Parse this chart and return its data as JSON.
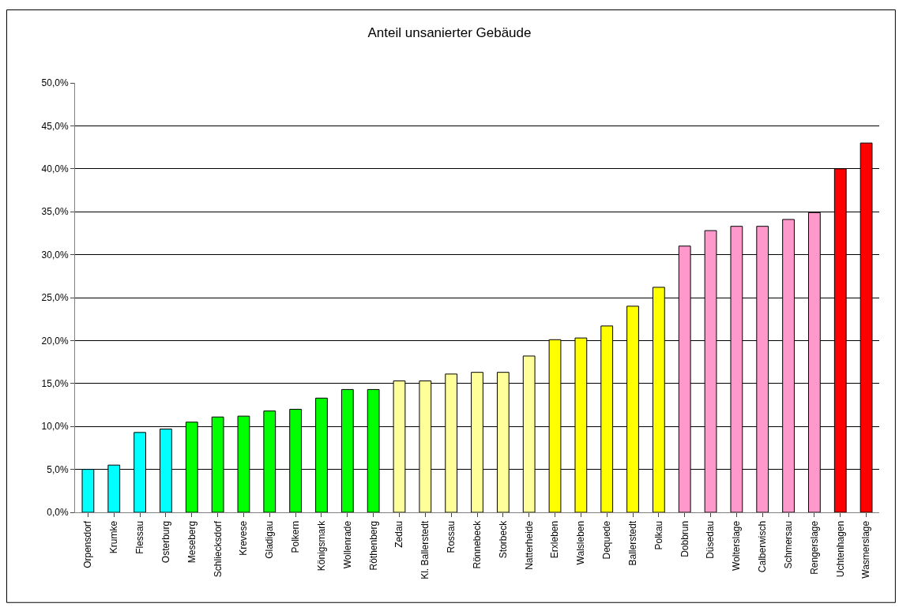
{
  "chart_data": {
    "type": "bar",
    "title": "Anteil unsanierter Gebäude",
    "categories": [
      "Orpensdorf",
      "Krumke",
      "Flessau",
      "Osterburg",
      "Meseberg",
      "Schliecksdorf",
      "Krevese",
      "Gladigau",
      "Polkern",
      "Königsmark",
      "Wollenrade",
      "Röthenberg",
      "Zedau",
      "Kl. Ballerstedt",
      "Rossau",
      "Rönnebeck",
      "Storbeck",
      "Natterheide",
      "Erxleben",
      "Walsleben",
      "Dequede",
      "Ballerstedt",
      "Polkau",
      "Dobbrun",
      "Düsedau",
      "Wolterslage",
      "Calberwisch",
      "Schmersau",
      "Rengerslage",
      "Uchtenhagen",
      "Wasmerslage"
    ],
    "values": [
      5.0,
      5.5,
      9.3,
      9.7,
      10.5,
      11.1,
      11.2,
      11.8,
      12.0,
      13.3,
      14.3,
      14.3,
      15.3,
      15.3,
      16.1,
      16.3,
      16.3,
      18.2,
      20.1,
      20.3,
      21.7,
      24.0,
      26.2,
      31.0,
      32.8,
      33.3,
      33.3,
      34.1,
      34.9,
      40.0,
      43.0
    ],
    "colors": [
      "#00ffff",
      "#00ffff",
      "#00ffff",
      "#00ffff",
      "#00ff00",
      "#00ff00",
      "#00ff00",
      "#00ff00",
      "#00ff00",
      "#00ff00",
      "#00ff00",
      "#00ff00",
      "#ffff99",
      "#ffff99",
      "#ffff99",
      "#ffff99",
      "#ffff99",
      "#ffff99",
      "#ffff00",
      "#ffff00",
      "#ffff00",
      "#ffff00",
      "#ffff00",
      "#ff99cc",
      "#ff99cc",
      "#ff99cc",
      "#ff99cc",
      "#ff99cc",
      "#ff99cc",
      "#ff0000",
      "#ff0000"
    ],
    "ylim": [
      0,
      50
    ],
    "yticks": [
      {
        "value": 0,
        "label": "0,0%"
      },
      {
        "value": 5,
        "label": "5,0%"
      },
      {
        "value": 10,
        "label": "10,0%"
      },
      {
        "value": 15,
        "label": "15,0%"
      },
      {
        "value": 20,
        "label": "20,0%"
      },
      {
        "value": 25,
        "label": "25,0%"
      },
      {
        "value": 30,
        "label": "30,0%"
      },
      {
        "value": 35,
        "label": "35,0%"
      },
      {
        "value": 40,
        "label": "40,0%"
      },
      {
        "value": 45,
        "label": "45,0%"
      },
      {
        "value": 50,
        "label": "50,0%"
      }
    ],
    "grid": "y"
  }
}
